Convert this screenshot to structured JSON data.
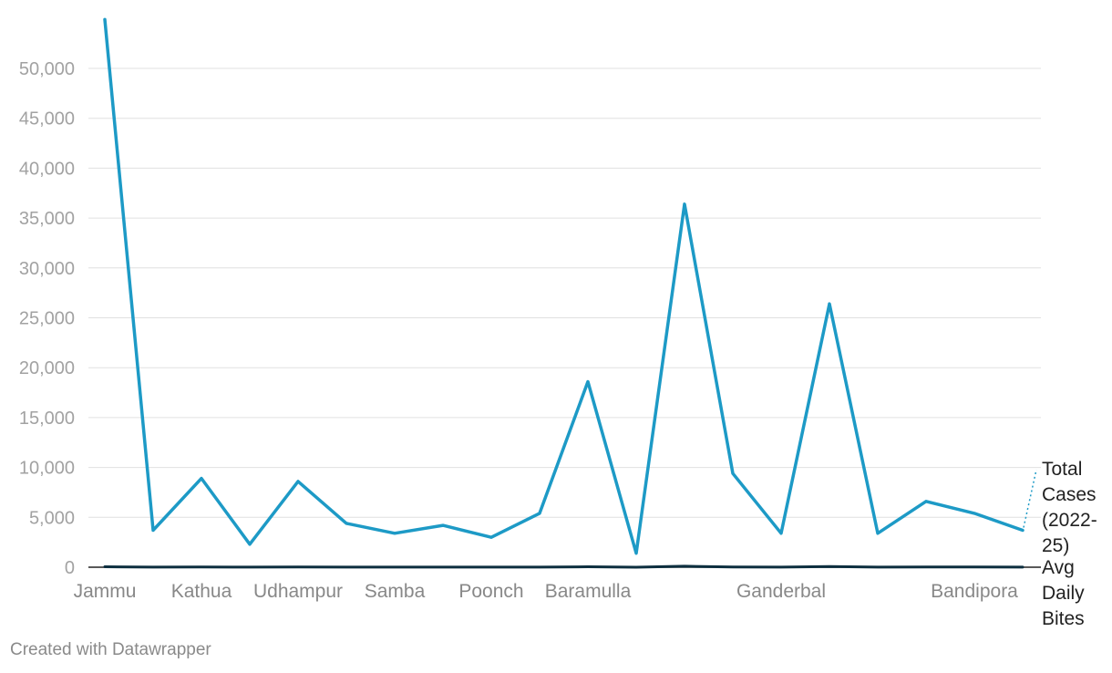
{
  "chart_data": {
    "type": "line",
    "title": "",
    "xlabel": "",
    "ylabel": "",
    "ylim": [
      0,
      55000
    ],
    "yticks": [
      0,
      5000,
      10000,
      15000,
      20000,
      25000,
      30000,
      35000,
      40000,
      45000,
      50000
    ],
    "ytick_labels": [
      "0",
      "5,000",
      "10,000",
      "15,000",
      "20,000",
      "25,000",
      "30,000",
      "35,000",
      "40,000",
      "45,000",
      "50,000"
    ],
    "grid": true,
    "legend": "direct labels at right",
    "x_count": 20,
    "x_tick_labels": [
      {
        "index": 0,
        "label": "Jammu"
      },
      {
        "index": 2,
        "label": "Kathua"
      },
      {
        "index": 4,
        "label": "Udhampur"
      },
      {
        "index": 6,
        "label": "Samba"
      },
      {
        "index": 8,
        "label": "Poonch"
      },
      {
        "index": 10,
        "label": "Baramulla"
      },
      {
        "index": 14,
        "label": "Ganderbal"
      },
      {
        "index": 18,
        "label": "Bandipora"
      }
    ],
    "series": [
      {
        "name": "Total Cases (2022-25)",
        "label_lines": [
          "Total",
          "Cases",
          "(2022-",
          "25)"
        ],
        "color": "#1d9ac6",
        "values": [
          54900,
          3700,
          8900,
          2300,
          8600,
          4400,
          3400,
          4200,
          3000,
          5400,
          18600,
          1400,
          36400,
          9400,
          3400,
          26400,
          3400,
          6600,
          5400,
          3700
        ]
      },
      {
        "name": "Avg Daily Bites",
        "label_lines": [
          "Avg",
          "Daily",
          "Bites"
        ],
        "color": "#0d2f3f",
        "values": [
          50,
          8,
          20,
          5,
          20,
          10,
          8,
          10,
          7,
          13,
          50,
          3,
          100,
          26,
          9,
          70,
          9,
          18,
          15,
          10
        ]
      }
    ]
  },
  "footer": {
    "credit": "Created with Datawrapper"
  },
  "colors": {
    "grid": "#e0e0e0",
    "axis": "#222222"
  }
}
